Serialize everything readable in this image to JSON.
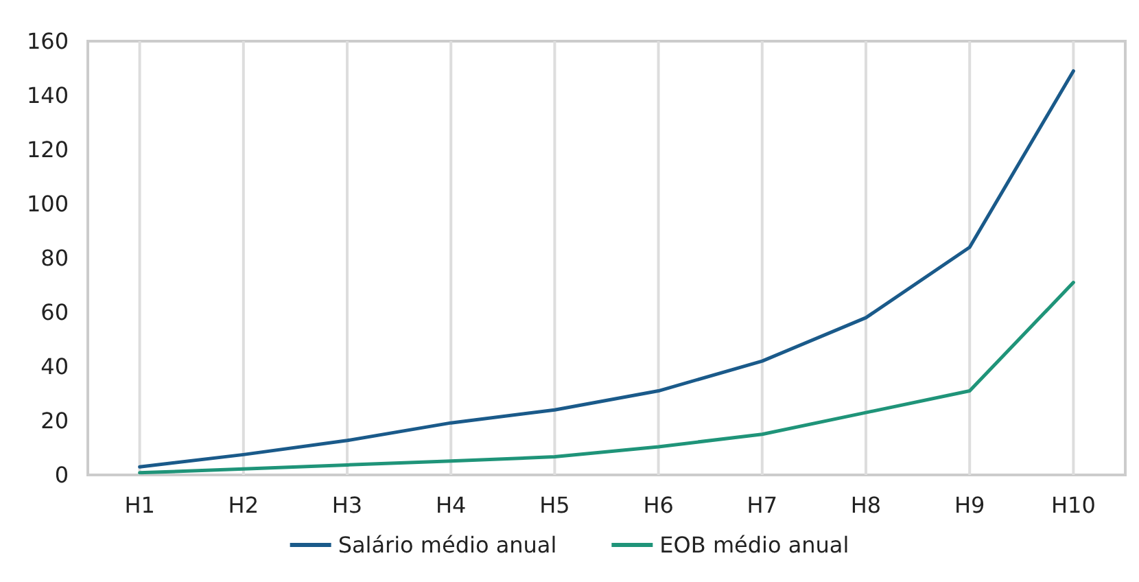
{
  "chart_data": {
    "type": "line",
    "categories": [
      "H1",
      "H2",
      "H3",
      "H4",
      "H5",
      "H6",
      "H7",
      "H8",
      "H9",
      "H10"
    ],
    "series": [
      {
        "name": "Salário médio anual",
        "color": "#1a5a8a",
        "values": [
          3,
          7.5,
          12.7,
          19.2,
          24,
          31,
          42,
          58,
          84,
          149
        ]
      },
      {
        "name": "EOB médio anual",
        "color": "#1f9479",
        "values": [
          0.8,
          2.2,
          3.7,
          5.1,
          6.7,
          10.4,
          15,
          23,
          31,
          71
        ]
      }
    ],
    "ylim": [
      0,
      160
    ],
    "yticks": [
      0,
      20,
      40,
      60,
      80,
      100,
      120,
      140,
      160
    ],
    "grid": "x",
    "legend": "bottom",
    "marker": "none",
    "line_style": "solid"
  }
}
